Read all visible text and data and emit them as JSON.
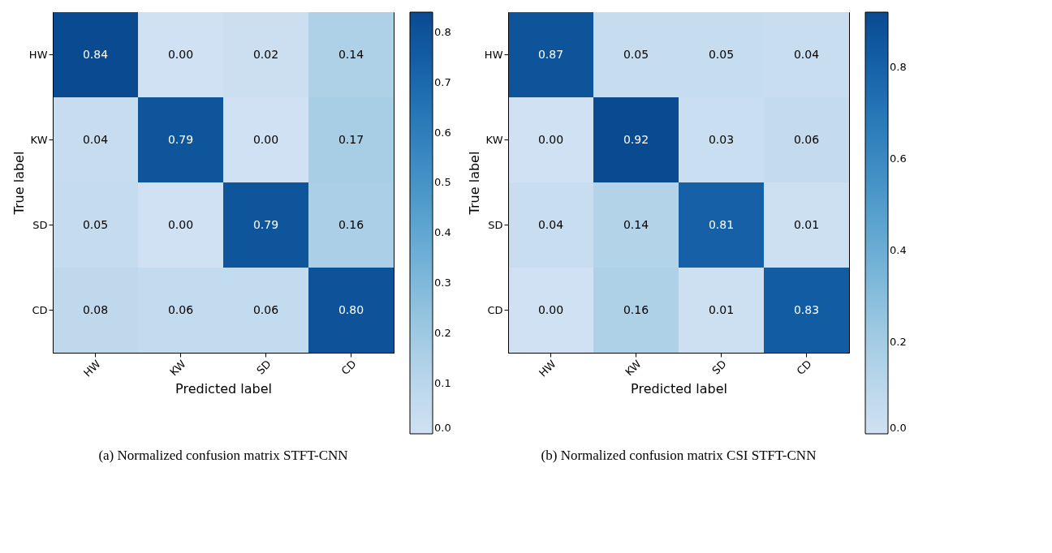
{
  "chart_data": [
    {
      "type": "heatmap",
      "title": "(a) Normalized confusion matrix STFT-CNN",
      "xlabel": "Predicted label",
      "ylabel": "True label",
      "categories": [
        "HW",
        "KW",
        "SD",
        "CD"
      ],
      "y_categories": [
        "HW",
        "KW",
        "SD",
        "CD"
      ],
      "cells": [
        [
          0.84,
          0.0,
          0.02,
          0.14
        ],
        [
          0.04,
          0.79,
          0.0,
          0.17
        ],
        [
          0.05,
          0.0,
          0.79,
          0.16
        ],
        [
          0.08,
          0.06,
          0.06,
          0.8
        ]
      ],
      "cell_labels": [
        [
          "0.84",
          "0.00",
          "0.02",
          "0.14"
        ],
        [
          "0.04",
          "0.79",
          "0.00",
          "0.17"
        ],
        [
          "0.05",
          "0.00",
          "0.79",
          "0.16"
        ],
        [
          "0.08",
          "0.06",
          "0.06",
          "0.80"
        ]
      ],
      "clim": [
        0,
        0.84
      ],
      "cticks": [
        {
          "value": 0,
          "label": "0.0"
        },
        {
          "value": 0.1,
          "label": "0.1"
        },
        {
          "value": 0.2,
          "label": "0.2"
        },
        {
          "value": 0.3,
          "label": "0.3"
        },
        {
          "value": 0.4,
          "label": "0.4"
        },
        {
          "value": 0.5,
          "label": "0.5"
        },
        {
          "value": 0.6,
          "label": "0.6"
        },
        {
          "value": 0.7,
          "label": "0.7"
        },
        {
          "value": 0.8,
          "label": "0.8"
        }
      ]
    },
    {
      "type": "heatmap",
      "title": "(b) Normalized confusion matrix CSI STFT-CNN",
      "xlabel": "Predicted label",
      "ylabel": "True label",
      "categories": [
        "HW",
        "KW",
        "SD",
        "CD"
      ],
      "y_categories": [
        "HW",
        "KW",
        "SD",
        "CD"
      ],
      "cells": [
        [
          0.87,
          0.05,
          0.05,
          0.04
        ],
        [
          0.0,
          0.92,
          0.03,
          0.06
        ],
        [
          0.04,
          0.14,
          0.81,
          0.01
        ],
        [
          0.0,
          0.16,
          0.01,
          0.83
        ]
      ],
      "cell_labels": [
        [
          "0.87",
          "0.05",
          "0.05",
          "0.04"
        ],
        [
          "0.00",
          "0.92",
          "0.03",
          "0.06"
        ],
        [
          "0.04",
          "0.14",
          "0.81",
          "0.01"
        ],
        [
          "0.00",
          "0.16",
          "0.01",
          "0.83"
        ]
      ],
      "clim": [
        0,
        0.92
      ],
      "cticks": [
        {
          "value": 0,
          "label": "0.0"
        },
        {
          "value": 0.2,
          "label": "0.2"
        },
        {
          "value": 0.4,
          "label": "0.4"
        },
        {
          "value": 0.6,
          "label": "0.6"
        },
        {
          "value": 0.8,
          "label": "0.8"
        }
      ]
    }
  ]
}
